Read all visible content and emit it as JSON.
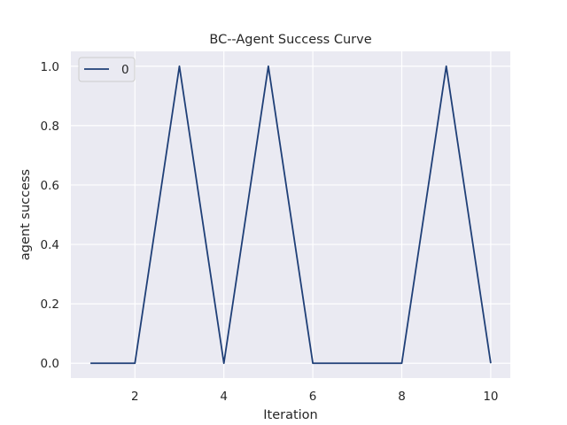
{
  "chart_data": {
    "type": "line",
    "title": "BC--Agent Success Curve",
    "xlabel": "Iteration",
    "ylabel": "agent success",
    "x": [
      1,
      2,
      3,
      4,
      5,
      6,
      7,
      8,
      9,
      10
    ],
    "series": [
      {
        "name": "0",
        "values": [
          0,
          0,
          1,
          0,
          1,
          0,
          0,
          0,
          1,
          0
        ],
        "color": "#1f3f77"
      }
    ],
    "xlim": [
      0.56,
      10.44
    ],
    "ylim": [
      -0.05,
      1.05
    ],
    "xticks": [
      2,
      4,
      6,
      8,
      10
    ],
    "yticks": [
      0.0,
      0.2,
      0.4,
      0.6,
      0.8,
      1.0
    ],
    "xtick_labels": [
      "2",
      "4",
      "6",
      "8",
      "10"
    ],
    "ytick_labels": [
      "0.0",
      "0.2",
      "0.4",
      "0.6",
      "0.8",
      "1.0"
    ],
    "grid": true,
    "legend_position": "top-left",
    "background_color": "#eaeaf2",
    "grid_color": "#ffffff"
  }
}
